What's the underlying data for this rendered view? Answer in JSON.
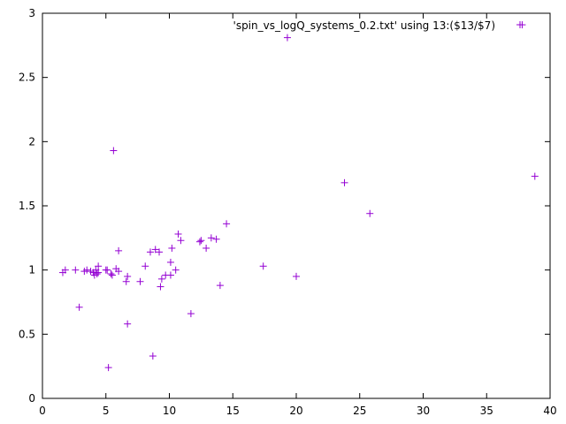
{
  "chart_data": {
    "type": "scatter",
    "title": "",
    "xlabel": "",
    "ylabel": "",
    "xlim": [
      0,
      40
    ],
    "ylim": [
      0,
      3
    ],
    "xticks": [
      0,
      5,
      10,
      15,
      20,
      25,
      30,
      35,
      40
    ],
    "yticks": [
      0,
      0.5,
      1,
      1.5,
      2,
      2.5,
      3
    ],
    "xtick_labels": [
      "0",
      "5",
      "10",
      "15",
      "20",
      "25",
      "30",
      "35",
      "40"
    ],
    "ytick_labels": [
      "0",
      "0.5",
      "1",
      "1.5",
      "2",
      "2.5",
      "3"
    ],
    "grid": false,
    "legend_position": "top-right",
    "series": [
      {
        "name": "'spin_vs_logQ_systems_0.2.txt' using 13:($13/$7)",
        "color": "#9400d3",
        "marker": "plus",
        "x": [
          1.6,
          1.8,
          2.6,
          2.9,
          3.3,
          3.5,
          3.8,
          4.0,
          4.1,
          4.2,
          4.3,
          4.4,
          4.4,
          5.0,
          5.1,
          5.2,
          5.4,
          5.5,
          5.6,
          5.8,
          6.0,
          6.0,
          6.6,
          6.7,
          6.7,
          7.7,
          8.1,
          8.5,
          8.7,
          8.9,
          9.2,
          9.3,
          9.4,
          9.7,
          10.1,
          10.1,
          10.2,
          10.5,
          10.7,
          10.9,
          11.7,
          12.4,
          12.5,
          12.9,
          13.3,
          13.7,
          14.0,
          14.5,
          17.4,
          19.3,
          20.0,
          23.8,
          25.8,
          37.8,
          38.8
        ],
        "y": [
          0.98,
          1.0,
          1.0,
          0.71,
          0.99,
          1.0,
          0.99,
          0.98,
          0.96,
          1.0,
          0.97,
          0.98,
          1.03,
          1.0,
          1.0,
          0.24,
          0.97,
          0.96,
          1.93,
          1.01,
          0.99,
          1.15,
          0.91,
          0.95,
          0.58,
          0.91,
          1.03,
          1.14,
          0.33,
          1.16,
          1.14,
          0.87,
          0.93,
          0.96,
          1.06,
          0.96,
          1.17,
          1.0,
          1.28,
          1.23,
          0.66,
          1.22,
          1.23,
          1.17,
          1.25,
          1.24,
          0.88,
          1.36,
          1.03,
          2.81,
          0.95,
          1.68,
          1.44,
          2.91,
          1.73
        ]
      }
    ]
  }
}
